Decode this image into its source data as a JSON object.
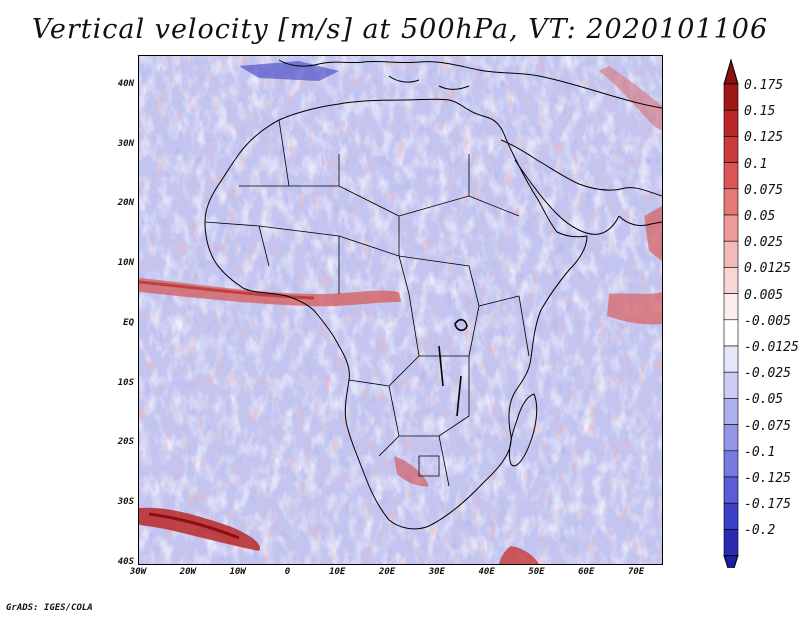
{
  "title": "Vertical velocity [m/s] at 500hPa, VT: 2020101106",
  "credit": "GrADS: IGES/COLA",
  "map": {
    "lon_range": [
      -30,
      75
    ],
    "lat_range": [
      -40,
      45
    ],
    "lat_ticks": [
      {
        "value": 40,
        "label": "40N"
      },
      {
        "value": 30,
        "label": "30N"
      },
      {
        "value": 20,
        "label": "20N"
      },
      {
        "value": 10,
        "label": "10N"
      },
      {
        "value": 0,
        "label": "EQ"
      },
      {
        "value": -10,
        "label": "10S"
      },
      {
        "value": -20,
        "label": "20S"
      },
      {
        "value": -30,
        "label": "30S"
      },
      {
        "value": -40,
        "label": "40S"
      }
    ],
    "lon_ticks": [
      {
        "value": -30,
        "label": "30W"
      },
      {
        "value": -20,
        "label": "20W"
      },
      {
        "value": -10,
        "label": "10W"
      },
      {
        "value": 0,
        "label": "0"
      },
      {
        "value": 10,
        "label": "10E"
      },
      {
        "value": 20,
        "label": "20E"
      },
      {
        "value": 30,
        "label": "30E"
      },
      {
        "value": 40,
        "label": "40E"
      },
      {
        "value": 50,
        "label": "50E"
      },
      {
        "value": 60,
        "label": "60E"
      },
      {
        "value": 70,
        "label": "70E"
      }
    ]
  },
  "colorbar": {
    "levels": [
      {
        "label": "0.175",
        "color": "#a01818"
      },
      {
        "label": "0.15",
        "color": "#bb2626"
      },
      {
        "label": "0.125",
        "color": "#cc3b3b"
      },
      {
        "label": "0.1",
        "color": "#dc5555"
      },
      {
        "label": "0.075",
        "color": "#e77878"
      },
      {
        "label": "0.05",
        "color": "#ee9a9a"
      },
      {
        "label": "0.025",
        "color": "#f4baba"
      },
      {
        "label": "0.0125",
        "color": "#f9d6d6"
      },
      {
        "label": "0.005",
        "color": "#fdeeee"
      },
      {
        "label": "-0.005",
        "color": "#ffffff"
      },
      {
        "label": "-0.0125",
        "color": "#e6e6fa"
      },
      {
        "label": "-0.025",
        "color": "#cccdf5"
      },
      {
        "label": "-0.05",
        "color": "#afb1ef"
      },
      {
        "label": "-0.075",
        "color": "#9396e8"
      },
      {
        "label": "-0.1",
        "color": "#777ae0"
      },
      {
        "label": "-0.125",
        "color": "#5a5dd6"
      },
      {
        "label": "-0.175",
        "color": "#3c3fc8"
      },
      {
        "label": "-0.2",
        "color": "#2a2bb5"
      }
    ],
    "top_color": "#8c1010",
    "bottom_color": "#1e1fa0"
  }
}
